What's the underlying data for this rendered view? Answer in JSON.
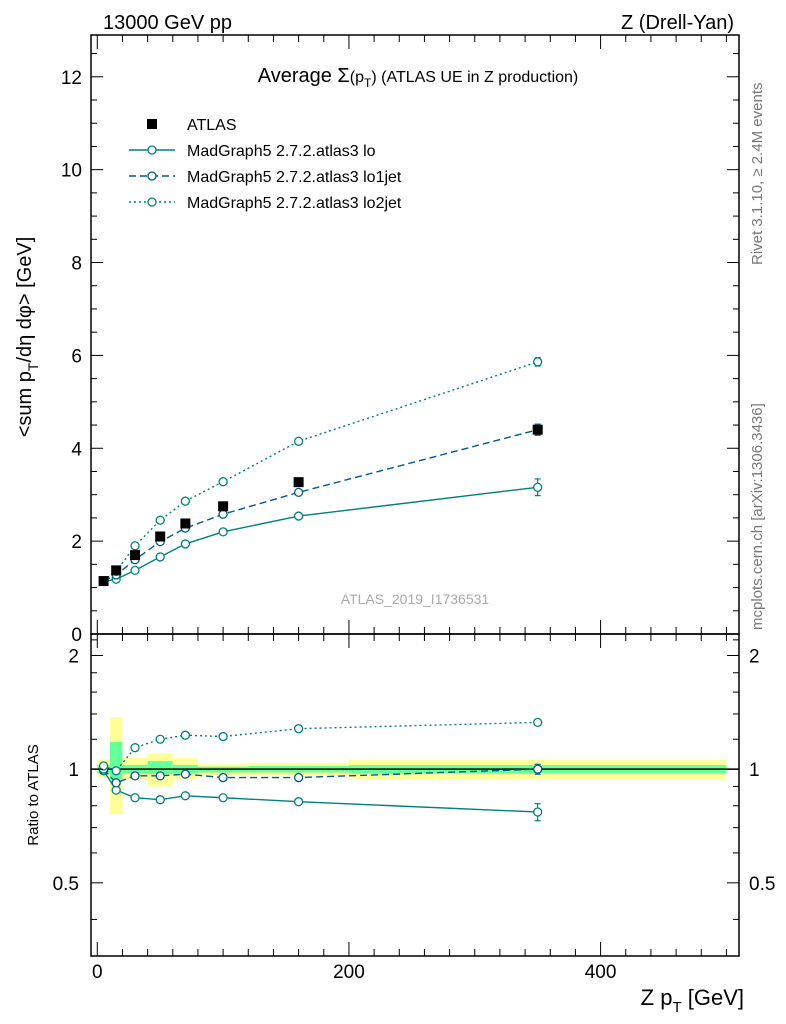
{
  "header": {
    "left": "13000 GeV pp",
    "right": "Z (Drell-Yan)"
  },
  "side_labels": {
    "rivet": "Rivet 3.1.10, ≥ 2.4M events",
    "mcplots": "mcplots.cern.ch [arXiv:1306.3436]"
  },
  "watermark": "ATLAS_2019_I1736531",
  "chart_data": {
    "type": "line",
    "title": "Average Σ(pT) (ATLAS UE in Z production)",
    "title_parts": {
      "lead": "Average ",
      "sigma": "Σ",
      "paren_open": "(p",
      "sub": "T",
      "paren_close": ")",
      "rest": " (ATLAS UE in Z production)"
    },
    "xlabel": "Z pT [GeV]",
    "xlabel_parts": {
      "main": "Z p",
      "sub": "T",
      "unit": " [GeV]"
    },
    "ylabel": "<sum pT/dη dφ> [GeV]",
    "ylabel_parts": {
      "lead": "<sum p",
      "sub": "T",
      "rest": "/dη dφ> [GeV]"
    },
    "ratio_ylabel": "Ratio to ATLAS",
    "xlim": [
      -5,
      510
    ],
    "ylim": [
      0,
      12.9
    ],
    "ratio_ylim": [
      0.32,
      2.28
    ],
    "x_ticks": [
      0,
      200,
      400
    ],
    "y_ticks": [
      0,
      2,
      4,
      6,
      8,
      10,
      12
    ],
    "ratio_ticks": [
      0.5,
      1,
      2
    ],
    "ratio_tick_labels": [
      "0.5",
      "1",
      "2"
    ],
    "legend": {
      "position": "top-left",
      "entries": [
        "ATLAS",
        "MadGraph5 2.7.2.atlas3 lo",
        "MadGraph5 2.7.2.atlas3 lo1jet",
        "MadGraph5 2.7.2.atlas3 lo2jet"
      ]
    },
    "data": {
      "name": "ATLAS",
      "x": [
        5,
        15,
        30,
        50,
        70,
        100,
        160,
        350
      ],
      "y": [
        1.14,
        1.37,
        1.7,
        2.1,
        2.38,
        2.75,
        3.27,
        4.4
      ],
      "bins": [
        [
          0,
          10
        ],
        [
          10,
          20
        ],
        [
          20,
          40
        ],
        [
          40,
          60
        ],
        [
          60,
          80
        ],
        [
          80,
          120
        ],
        [
          120,
          200
        ],
        [
          200,
          500
        ]
      ],
      "band_inner": [
        [
          0.975,
          1.025
        ],
        [
          0.94,
          1.18
        ],
        [
          0.975,
          1.025
        ],
        [
          0.97,
          1.05
        ],
        [
          0.975,
          1.025
        ],
        [
          0.98,
          1.015
        ],
        [
          0.98,
          1.02
        ],
        [
          0.975,
          1.025
        ]
      ],
      "band_outer": [
        [
          0.95,
          1.06
        ],
        [
          0.76,
          1.37
        ],
        [
          0.94,
          1.07
        ],
        [
          0.9,
          1.1
        ],
        [
          0.94,
          1.07
        ],
        [
          0.96,
          1.03
        ],
        [
          0.96,
          1.04
        ],
        [
          0.94,
          1.06
        ]
      ]
    },
    "series": [
      {
        "name": "MadGraph5 2.7.2.atlas3 lo",
        "style": "solid",
        "color": "#008080",
        "x": [
          5,
          15,
          30,
          50,
          70,
          100,
          160,
          350
        ],
        "y": [
          1.13,
          1.18,
          1.37,
          1.66,
          1.94,
          2.2,
          2.54,
          3.16
        ],
        "yerr": [
          0.02,
          0.02,
          0.02,
          0.03,
          0.03,
          0.03,
          0.04,
          0.18
        ],
        "ratio": [
          0.99,
          0.88,
          0.84,
          0.83,
          0.85,
          0.84,
          0.82,
          0.77
        ],
        "ratio_err": [
          0.015,
          0.01,
          0.01,
          0.01,
          0.01,
          0.01,
          0.012,
          0.04
        ]
      },
      {
        "name": "MadGraph5 2.7.2.atlas3 lo1jet",
        "style": "dashed",
        "color": "#005a8a",
        "x": [
          5,
          15,
          30,
          50,
          70,
          100,
          160,
          350
        ],
        "y": [
          1.14,
          1.27,
          1.6,
          1.99,
          2.28,
          2.58,
          3.05,
          4.4
        ],
        "yerr": [
          0.02,
          0.02,
          0.02,
          0.03,
          0.03,
          0.03,
          0.04,
          0.12
        ],
        "ratio": [
          1.0,
          0.92,
          0.96,
          0.96,
          0.97,
          0.95,
          0.95,
          1.0
        ],
        "ratio_err": [
          0.015,
          0.01,
          0.01,
          0.01,
          0.01,
          0.01,
          0.012,
          0.03
        ]
      },
      {
        "name": "MadGraph5 2.7.2.atlas3 lo2jet",
        "style": "dotted",
        "color": "#008080",
        "x": [
          5,
          15,
          30,
          50,
          70,
          100,
          160,
          350
        ],
        "y": [
          1.15,
          1.35,
          1.9,
          2.45,
          2.86,
          3.28,
          4.15,
          5.86
        ],
        "yerr": [
          0.02,
          0.02,
          0.02,
          0.03,
          0.03,
          0.03,
          0.04,
          0.09
        ],
        "ratio": [
          1.02,
          0.99,
          1.14,
          1.2,
          1.23,
          1.22,
          1.28,
          1.33
        ],
        "ratio_err": [
          0.015,
          0.01,
          0.01,
          0.01,
          0.01,
          0.01,
          0.012,
          0.02
        ]
      }
    ],
    "colors": {
      "band_inner": "#66ff99",
      "band_outer": "#ffff99",
      "data_marker": "#000000",
      "mc": "#008080"
    }
  }
}
